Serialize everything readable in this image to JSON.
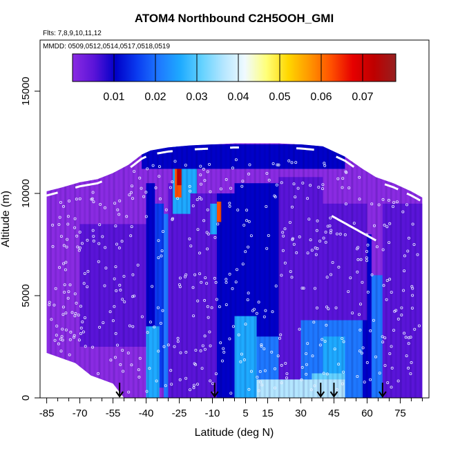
{
  "chart_data": {
    "type": "heatmap",
    "title": "ATOM4 Northbound C2H5OOH_GMI",
    "flights_label": "Flts: 7,8,9,10,11,12",
    "dates_label": "MMDD: 0509,0512,0514,0517,0518,0519",
    "xlabel": "Latitude (deg N)",
    "ylabel": "Altitude (m)",
    "xlim": [
      -88,
      88
    ],
    "ylim": [
      0,
      17500
    ],
    "x_ticks": [
      -85,
      -70,
      -55,
      -40,
      -25,
      -10,
      5,
      15,
      30,
      45,
      60,
      75
    ],
    "x_minor_ticks": [
      -80,
      -75,
      -65,
      -60,
      -50,
      -45,
      -35,
      -30,
      -20,
      -15,
      -5,
      0,
      10,
      20,
      25,
      35,
      40,
      50,
      55,
      65,
      70,
      80,
      85
    ],
    "y_ticks": [
      0,
      5000,
      10000,
      15000
    ],
    "colorbar": {
      "ticks": [
        0.01,
        0.02,
        0.03,
        0.04,
        0.05,
        0.06,
        0.07
      ],
      "range": [
        0,
        0.078
      ],
      "colors": [
        "#8a2be2",
        "#5a14d8",
        "#0000c8",
        "#0a3cf0",
        "#1e78ff",
        "#1eaaff",
        "#64d2ff",
        "#b4e6ff",
        "#f0faff",
        "#ffff78",
        "#ffd700",
        "#ff9600",
        "#ff5000",
        "#e60000",
        "#be0000",
        "#962020"
      ]
    },
    "arrow_latitudes": [
      -52,
      -9,
      39,
      45,
      67
    ],
    "altitude_profile_top": [
      [
        -85,
        10100
      ],
      [
        -78,
        10300
      ],
      [
        -70,
        10550
      ],
      [
        -62,
        10700
      ],
      [
        -55,
        11000
      ],
      [
        -48,
        11400
      ],
      [
        -42,
        11900
      ],
      [
        -38,
        12100
      ],
      [
        -30,
        12250
      ],
      [
        -20,
        12350
      ],
      [
        -10,
        12400
      ],
      [
        0,
        12450
      ],
      [
        10,
        12450
      ],
      [
        20,
        12450
      ],
      [
        30,
        12400
      ],
      [
        40,
        12300
      ],
      [
        50,
        11800
      ],
      [
        58,
        11200
      ],
      [
        64,
        10800
      ],
      [
        72,
        10500
      ],
      [
        80,
        10100
      ],
      [
        85,
        9800
      ]
    ],
    "bottom_edge": [
      [
        -85,
        2200
      ],
      [
        -72,
        1700
      ],
      [
        -65,
        1100
      ],
      [
        -55,
        700
      ],
      [
        -50,
        0
      ],
      [
        85,
        0
      ]
    ],
    "cells": [
      {
        "lat": [
          -85,
          -40
        ],
        "alt": [
          0,
          10200
        ],
        "value": 0.004
      },
      {
        "lat": [
          -70,
          -40
        ],
        "alt": [
          2500,
          8500
        ],
        "value": 0.006
      },
      {
        "lat": [
          -40,
          -36
        ],
        "alt": [
          0,
          10500
        ],
        "value": 0.012
      },
      {
        "lat": [
          -36,
          -32
        ],
        "alt": [
          500,
          9500
        ],
        "value": 0.017
      },
      {
        "lat": [
          -32,
          -30
        ],
        "alt": [
          0,
          9000
        ],
        "value": 0.022
      },
      {
        "lat": [
          -40,
          -34
        ],
        "alt": [
          0,
          3500
        ],
        "value": 0.028
      },
      {
        "lat": [
          -30,
          -20
        ],
        "alt": [
          0,
          10500
        ],
        "value": 0.006
      },
      {
        "lat": [
          -28,
          -20
        ],
        "alt": [
          9000,
          12300
        ],
        "value": 0.028
      },
      {
        "lat": [
          -27,
          -24
        ],
        "alt": [
          9800,
          11800
        ],
        "value": 0.062
      },
      {
        "lat": [
          -26,
          -24
        ],
        "alt": [
          10400,
          11500
        ],
        "value": 0.072
      },
      {
        "lat": [
          -22,
          -17
        ],
        "alt": [
          9000,
          12300
        ],
        "value": 0.026
      },
      {
        "lat": [
          -20,
          -8
        ],
        "alt": [
          0,
          10000
        ],
        "value": 0.007
      },
      {
        "lat": [
          -8,
          0
        ],
        "alt": [
          0,
          10000
        ],
        "value": 0.01
      },
      {
        "lat": [
          -8,
          -6
        ],
        "alt": [
          8600,
          9600
        ],
        "value": 0.062
      },
      {
        "lat": [
          -11,
          -8
        ],
        "alt": [
          8000,
          9500
        ],
        "value": 0.025
      },
      {
        "lat": [
          0,
          20
        ],
        "alt": [
          0,
          10500
        ],
        "value": 0.012
      },
      {
        "lat": [
          0,
          10
        ],
        "alt": [
          0,
          4000
        ],
        "value": 0.027
      },
      {
        "lat": [
          10,
          20
        ],
        "alt": [
          0,
          3000
        ],
        "value": 0.022
      },
      {
        "lat": [
          20,
          40
        ],
        "alt": [
          0,
          10800
        ],
        "value": 0.009
      },
      {
        "lat": [
          30,
          50
        ],
        "alt": [
          0,
          3800
        ],
        "value": 0.021
      },
      {
        "lat": [
          35,
          55
        ],
        "alt": [
          0,
          1200
        ],
        "value": 0.034
      },
      {
        "lat": [
          10,
          60
        ],
        "alt": [
          0,
          900
        ],
        "value": 0.037
      },
      {
        "lat": [
          40,
          50
        ],
        "alt": [
          1200,
          3000
        ],
        "value": 0.028
      },
      {
        "lat": [
          50,
          58
        ],
        "alt": [
          0,
          6000
        ],
        "value": 0.02
      },
      {
        "lat": [
          58,
          62
        ],
        "alt": [
          0,
          8000
        ],
        "value": 0.012
      },
      {
        "lat": [
          62,
          67
        ],
        "alt": [
          0,
          6000
        ],
        "value": 0.024
      },
      {
        "lat": [
          67,
          85
        ],
        "alt": [
          0,
          9500
        ],
        "value": 0.006
      },
      {
        "lat": [
          40,
          60
        ],
        "alt": [
          3800,
          9500
        ],
        "value": 0.009
      },
      {
        "lat": [
          -42,
          50
        ],
        "alt": [
          11200,
          12400
        ],
        "value": 0.012
      }
    ]
  }
}
